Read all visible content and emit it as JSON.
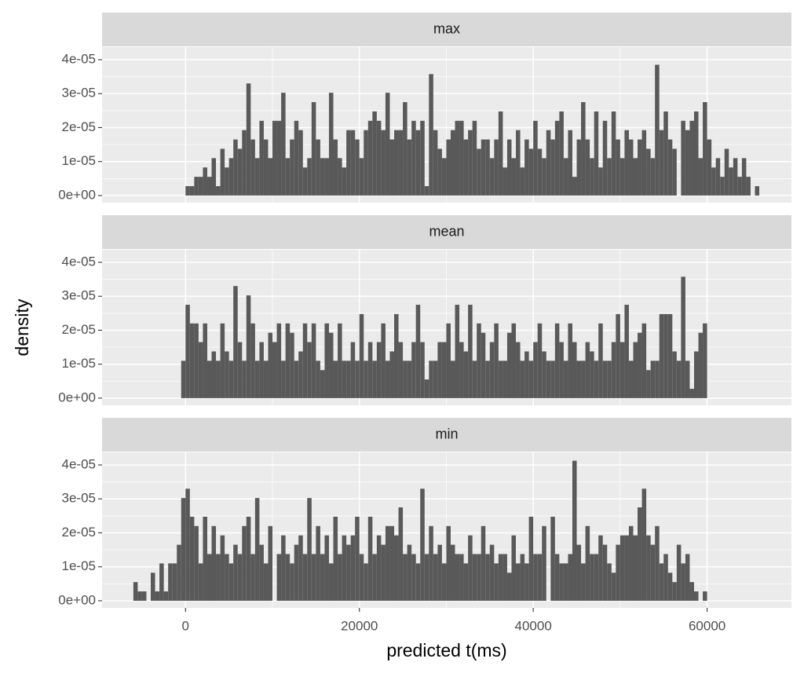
{
  "chart_data": {
    "type": "histogram",
    "xlabel": "predicted t(ms)",
    "ylabel": "density",
    "color": "#595959",
    "grid": true,
    "xlim": [
      -9600,
      69700
    ],
    "xticks": [
      0,
      20000,
      40000,
      60000
    ],
    "ylim": [
      -2.1e-06,
      4.37e-05
    ],
    "yticks": [
      {
        "value": 0,
        "label": "0e+00"
      },
      {
        "value": 1e-05,
        "label": "1e-05"
      },
      {
        "value": 2e-05,
        "label": "2e-05"
      },
      {
        "value": 3e-05,
        "label": "3e-05"
      },
      {
        "value": 4e-05,
        "label": "4e-05"
      }
    ],
    "bins": [
      -6000,
      -5500,
      -5000,
      -4500,
      -4000,
      -3500,
      -3000,
      -2500,
      -2000,
      -1500,
      -1000,
      -500,
      0,
      500,
      1000,
      1500,
      2000,
      2500,
      3000,
      3500,
      4000,
      4500,
      5000,
      5500,
      6000,
      6500,
      7000,
      7500,
      8000,
      8500,
      9000,
      9500,
      10000,
      10500,
      11000,
      11500,
      12000,
      12500,
      13000,
      13500,
      14000,
      14500,
      15000,
      15500,
      16000,
      16500,
      17000,
      17500,
      18000,
      18500,
      19000,
      19500,
      20000,
      20500,
      21000,
      21500,
      22000,
      22500,
      23000,
      23500,
      24000,
      24500,
      25000,
      25500,
      26000,
      26500,
      27000,
      27500,
      28000,
      28500,
      29000,
      29500,
      30000,
      30500,
      31000,
      31500,
      32000,
      32500,
      33000,
      33500,
      34000,
      34500,
      35000,
      35500,
      36000,
      36500,
      37000,
      37500,
      38000,
      38500,
      39000,
      39500,
      40000,
      40500,
      41000,
      41500,
      42000,
      42500,
      43000,
      43500,
      44000,
      44500,
      45000,
      45500,
      46000,
      46500,
      47000,
      47500,
      48000,
      48500,
      49000,
      49500,
      50000,
      50500,
      51000,
      51500,
      52000,
      52500,
      53000,
      53500,
      54000,
      54500,
      55000,
      55500,
      56000,
      56500,
      57000,
      57500,
      58000,
      58500,
      59000,
      59500,
      60000,
      60500,
      61000,
      61500,
      62000,
      62500,
      63000,
      63500,
      64000,
      64500,
      65000,
      65500,
      66000
    ],
    "panels": [
      {
        "title": "max",
        "values": [
          0,
          0,
          0,
          0,
          0,
          0,
          0,
          0,
          0,
          0,
          0,
          0,
          2.75e-06,
          2.75e-06,
          5.5e-06,
          5.5e-06,
          8.25e-06,
          5.5e-06,
          1.1e-05,
          2.75e-06,
          1.375e-05,
          8.25e-06,
          1.1e-05,
          1.65e-05,
          1.375e-05,
          1.925e-05,
          3.3e-05,
          1.65e-05,
          1.1e-05,
          2.2e-05,
          1.65e-05,
          1.1e-05,
          2.2e-05,
          2.2e-05,
          3.025e-05,
          1.1e-05,
          1.65e-05,
          2.2e-05,
          1.925e-05,
          8.25e-06,
          1.1e-05,
          2.75e-05,
          1.65e-05,
          1.1e-05,
          1.1e-05,
          3.025e-05,
          1.65e-05,
          1.1e-05,
          8.25e-06,
          1.925e-05,
          1.925e-05,
          1.65e-05,
          1.1e-05,
          1.925e-05,
          2.2e-05,
          2.475e-05,
          2.2e-05,
          1.925e-05,
          3.025e-05,
          1.65e-05,
          1.925e-05,
          1.925e-05,
          2.75e-05,
          1.65e-05,
          2.2e-05,
          1.925e-05,
          2.2e-05,
          2.75e-06,
          3.575e-05,
          1.925e-05,
          1.375e-05,
          1.1e-05,
          1.65e-05,
          1.925e-05,
          2.2e-05,
          2.2e-05,
          1.65e-05,
          1.925e-05,
          2.2e-05,
          1.375e-05,
          1.65e-05,
          1.65e-05,
          1.1e-05,
          1.65e-05,
          2.475e-05,
          8.25e-06,
          1.65e-05,
          1.1e-05,
          1.925e-05,
          8.25e-06,
          1.65e-05,
          1.375e-05,
          2.2e-05,
          1.375e-05,
          1.1e-05,
          1.925e-05,
          1.65e-05,
          2.2e-05,
          2.475e-05,
          1.1e-05,
          1.925e-05,
          5.5e-06,
          1.65e-05,
          2.75e-05,
          1.65e-05,
          1.1e-05,
          2.475e-05,
          8.25e-06,
          2.2e-05,
          1.1e-05,
          2.475e-05,
          1.65e-05,
          1.1e-05,
          1.925e-05,
          1.65e-05,
          1.1e-05,
          1.65e-05,
          1.925e-05,
          1.375e-05,
          1.1e-05,
          3.85e-05,
          1.925e-05,
          2.475e-05,
          1.65e-05,
          1.375e-05,
          0,
          2.2e-05,
          1.925e-05,
          2.2e-05,
          2.475e-05,
          1.1e-05,
          2.75e-05,
          1.65e-05,
          8.25e-06,
          1.1e-05,
          5.5e-06,
          1.375e-05,
          8.25e-06,
          1.1e-05,
          5.5e-06,
          1.1e-05,
          5.5e-06,
          0,
          2.75e-06
        ]
      },
      {
        "title": "mean",
        "values": [
          0,
          0,
          0,
          0,
          0,
          0,
          0,
          0,
          0,
          0,
          0,
          1.1e-05,
          2.75e-05,
          2.2e-05,
          2.2e-05,
          1.65e-05,
          2.2e-05,
          1.1e-05,
          1.375e-05,
          1.1e-05,
          2.2e-05,
          1.375e-05,
          1.1e-05,
          3.3e-05,
          1.65e-05,
          1.1e-05,
          3.025e-05,
          2.2e-05,
          1.1e-05,
          1.65e-05,
          1.1e-05,
          1.925e-05,
          1.65e-05,
          2.2e-05,
          1.1e-05,
          2.2e-05,
          1.925e-05,
          1.1e-05,
          1.375e-05,
          2.2e-05,
          1.65e-05,
          2.2e-05,
          1.1e-05,
          8.25e-06,
          2.2e-05,
          1.925e-05,
          1.1e-05,
          2.2e-05,
          1.1e-05,
          1.1e-05,
          1.65e-05,
          1.1e-05,
          2.475e-05,
          1.1e-05,
          1.65e-05,
          1.1e-05,
          1.65e-05,
          2.2e-05,
          1.1e-05,
          1.375e-05,
          2.475e-05,
          1.65e-05,
          1.1e-05,
          1.1e-05,
          1.65e-05,
          2.75e-05,
          1.65e-05,
          5.5e-06,
          1.1e-05,
          1.1e-05,
          1.65e-05,
          1.65e-05,
          2.2e-05,
          1.1e-05,
          2.75e-05,
          1.65e-05,
          1.375e-05,
          2.75e-05,
          1.1e-05,
          2.2e-05,
          1.925e-05,
          1.1e-05,
          1.65e-05,
          2.2e-05,
          1.1e-05,
          1.1e-05,
          1.925e-05,
          2.2e-05,
          1.65e-05,
          1.1e-05,
          1.375e-05,
          1.1e-05,
          1.65e-05,
          2.2e-05,
          1.375e-05,
          1.1e-05,
          1.1e-05,
          2.2e-05,
          1.65e-05,
          1.1e-05,
          2.2e-05,
          1.65e-05,
          1.1e-05,
          1.1e-05,
          1.65e-05,
          1.375e-05,
          1.1e-05,
          2.2e-05,
          1.1e-05,
          1.1e-05,
          1.65e-05,
          2.475e-05,
          1.65e-05,
          2.75e-05,
          1.1e-05,
          1.65e-05,
          1.925e-05,
          2.2e-05,
          8.25e-06,
          1.1e-05,
          1.1e-05,
          2.475e-05,
          2.475e-05,
          2.475e-05,
          1.375e-05,
          1.1e-05,
          3.575e-05,
          1.1e-05,
          2.75e-06,
          1.375e-05,
          1.925e-05,
          2.2e-05,
          0,
          0,
          0,
          0,
          0,
          0,
          0,
          0,
          0,
          0,
          0,
          0
        ]
      },
      {
        "title": "min",
        "values": [
          5.5e-06,
          2.75e-06,
          2.75e-06,
          0,
          8.25e-06,
          2.75e-06,
          1.1e-05,
          2.75e-06,
          1.1e-05,
          1.1e-05,
          1.65e-05,
          3.025e-05,
          3.3e-05,
          2.475e-05,
          2.2e-05,
          1.1e-05,
          2.475e-05,
          1.375e-05,
          2.2e-05,
          1.375e-05,
          1.925e-05,
          1.375e-05,
          1.1e-05,
          1.65e-05,
          1.375e-05,
          2.2e-05,
          2.475e-05,
          1.375e-05,
          3.025e-05,
          1.65e-05,
          1.1e-05,
          2.2e-05,
          0,
          1.375e-05,
          1.925e-05,
          1.375e-05,
          1.1e-05,
          1.65e-05,
          1.925e-05,
          1.375e-05,
          3.025e-05,
          1.375e-05,
          2.2e-05,
          1.375e-05,
          1.925e-05,
          1.1e-05,
          2.475e-05,
          1.375e-05,
          1.925e-05,
          1.65e-05,
          1.925e-05,
          2.475e-05,
          1.375e-05,
          1.1e-05,
          2.475e-05,
          1.375e-05,
          1.925e-05,
          1.65e-05,
          2.2e-05,
          2.2e-05,
          1.925e-05,
          2.75e-05,
          1.375e-05,
          1.65e-05,
          1.375e-05,
          1.1e-05,
          3.3e-05,
          1.375e-05,
          2.2e-05,
          1.375e-05,
          1.65e-05,
          1.1e-05,
          2.2e-05,
          1.65e-05,
          1.375e-05,
          1.375e-05,
          1.1e-05,
          1.925e-05,
          1.375e-05,
          1.375e-05,
          2.2e-05,
          1.375e-05,
          1.65e-05,
          1.1e-05,
          1.375e-05,
          1.375e-05,
          8.25e-06,
          1.925e-05,
          1.1e-05,
          1.375e-05,
          1.1e-05,
          2.475e-05,
          1.375e-05,
          1.375e-05,
          2.2e-05,
          0,
          2.475e-05,
          1.375e-05,
          1.1e-05,
          1.1e-05,
          1.375e-05,
          4.125e-05,
          1.65e-05,
          1.1e-05,
          2.2e-05,
          1.375e-05,
          1.375e-05,
          1.925e-05,
          1.65e-05,
          1.1e-05,
          8.25e-06,
          1.65e-05,
          1.925e-05,
          1.925e-05,
          2.2e-05,
          1.925e-05,
          2.75e-05,
          3.3e-05,
          1.925e-05,
          1.65e-05,
          2.2e-05,
          1.1e-05,
          1.375e-05,
          8.25e-06,
          5.5e-06,
          1.65e-05,
          1.1e-05,
          1.375e-05,
          5.5e-06,
          2.75e-06,
          0,
          2.75e-06,
          0,
          0,
          0,
          0,
          0,
          0,
          0,
          0,
          0,
          0,
          0,
          0
        ]
      }
    ]
  }
}
